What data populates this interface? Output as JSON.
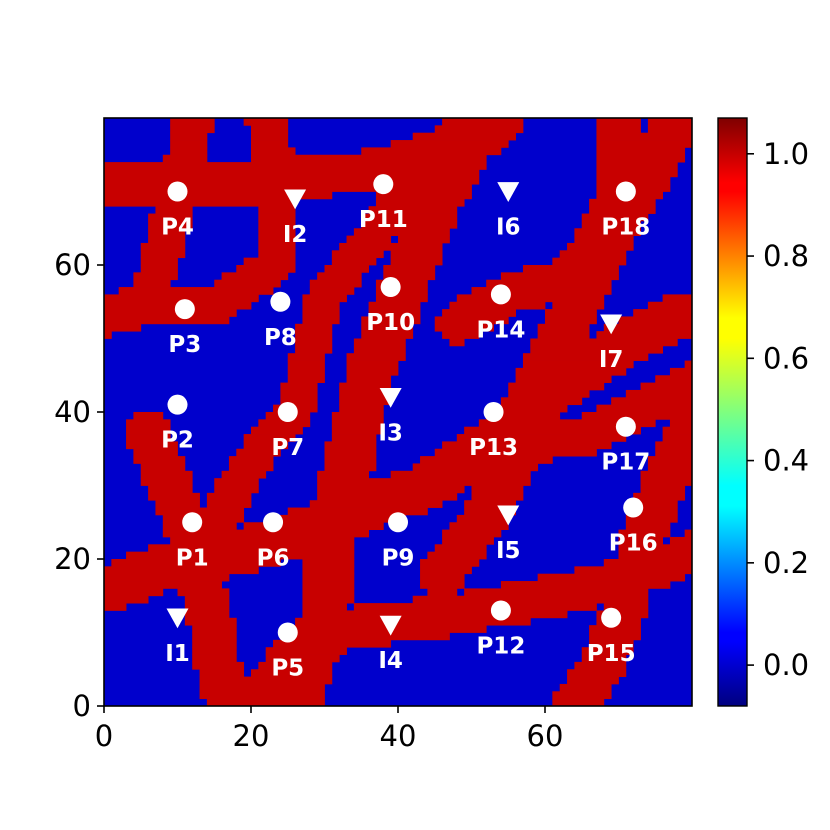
{
  "chart_data": {
    "type": "heatmap",
    "title": "",
    "xlabel": "",
    "ylabel": "",
    "xlim": [
      0,
      80
    ],
    "ylim": [
      0,
      80
    ],
    "x_ticks": [
      0,
      20,
      40,
      60
    ],
    "y_ticks": [
      0,
      20,
      40,
      60
    ],
    "grid": false,
    "field": {
      "description_values": "binary facies map: 1 = channel, 0 = background",
      "low_value": 0,
      "high_value": 1,
      "low_color": "#0000cc",
      "high_color": "#c80000",
      "channels": [
        {
          "points": [
            [
              1,
              16
            ],
            [
              8,
              19
            ],
            [
              18,
              21
            ],
            [
              28,
              24
            ],
            [
              36,
              27
            ],
            [
              44,
              30
            ],
            [
              50,
              34
            ],
            [
              60,
              42
            ],
            [
              70,
              49
            ],
            [
              78,
              53
            ]
          ],
          "halfwidth": 3.2
        },
        {
          "points": [
            [
              6,
              37
            ],
            [
              11,
              25
            ],
            [
              14,
              14
            ],
            [
              16,
              3
            ],
            [
              17,
              0
            ]
          ],
          "halfwidth": 3.0
        },
        {
          "points": [
            [
              20,
              0
            ],
            [
              27,
              9
            ],
            [
              36,
              11
            ],
            [
              45,
              12
            ],
            [
              56,
              14
            ],
            [
              66,
              16
            ],
            [
              76,
              19
            ],
            [
              80,
              21
            ]
          ],
          "halfwidth": 2.8
        },
        {
          "points": [
            [
              0,
              71
            ],
            [
              8,
              71
            ],
            [
              18,
              71
            ],
            [
              28,
              72
            ],
            [
              38,
              73
            ],
            [
              46,
              76
            ],
            [
              52,
              80
            ]
          ],
          "halfwidth": 2.8
        },
        {
          "points": [
            [
              12,
              79
            ],
            [
              10,
              70
            ],
            [
              8,
              62
            ],
            [
              6,
              55
            ],
            [
              0,
              53
            ]
          ],
          "halfwidth": 2.6
        },
        {
          "points": [
            [
              22,
              80
            ],
            [
              24,
              70
            ],
            [
              23,
              60
            ],
            [
              16,
              55
            ],
            [
              4,
              54
            ],
            [
              0,
              53
            ]
          ],
          "halfwidth": 2.6
        },
        {
          "points": [
            [
              26,
              0
            ],
            [
              30,
              12
            ],
            [
              31,
              24
            ],
            [
              34,
              36
            ],
            [
              36,
              45
            ],
            [
              40,
              55
            ],
            [
              45,
              68
            ],
            [
              50,
              77
            ],
            [
              54,
              80
            ]
          ],
          "halfwidth": 3.3
        },
        {
          "points": [
            [
              14,
              22
            ],
            [
              18,
              30
            ],
            [
              22,
              36
            ],
            [
              26,
              40
            ],
            [
              28,
              48
            ],
            [
              30,
              56
            ],
            [
              36,
              63
            ],
            [
              40,
              69
            ],
            [
              46,
              76
            ],
            [
              50,
              80
            ]
          ],
          "halfwidth": 2.5
        },
        {
          "points": [
            [
              64,
              0
            ],
            [
              68,
              6
            ],
            [
              71,
              14
            ],
            [
              73,
              22
            ],
            [
              76,
              30
            ],
            [
              80,
              38
            ]
          ],
          "halfwidth": 3.0
        },
        {
          "points": [
            [
              46,
              18
            ],
            [
              52,
              26
            ],
            [
              56,
              34
            ],
            [
              58,
              42
            ],
            [
              62,
              50
            ],
            [
              66,
              58
            ],
            [
              70,
              66
            ],
            [
              74,
              72
            ],
            [
              78,
              80
            ]
          ],
          "halfwidth": 3.0
        },
        {
          "points": [
            [
              60,
              36
            ],
            [
              66,
              37
            ],
            [
              72,
              40
            ],
            [
              80,
              44
            ]
          ],
          "halfwidth": 2.6
        },
        {
          "points": [
            [
              70,
              80
            ],
            [
              70,
              70
            ],
            [
              66,
              62
            ],
            [
              62,
              58
            ],
            [
              55,
              56
            ],
            [
              48,
              52
            ]
          ],
          "halfwidth": 2.8
        }
      ]
    },
    "colorbar": {
      "colormap": "jet",
      "min": -0.08,
      "max": 1.07,
      "tick_values": [
        0.0,
        0.2,
        0.4,
        0.6,
        0.8,
        1.0
      ],
      "tick_labels": [
        "0.0",
        "0.2",
        "0.4",
        "0.6",
        "0.8",
        "1.0"
      ]
    },
    "wells": [
      {
        "label": "P1",
        "kind": "producer",
        "x": 12,
        "y": 25
      },
      {
        "label": "P2",
        "kind": "producer",
        "x": 10,
        "y": 41
      },
      {
        "label": "P3",
        "kind": "producer",
        "x": 11,
        "y": 54
      },
      {
        "label": "P4",
        "kind": "producer",
        "x": 10,
        "y": 70
      },
      {
        "label": "P5",
        "kind": "producer",
        "x": 25,
        "y": 10
      },
      {
        "label": "P6",
        "kind": "producer",
        "x": 23,
        "y": 25
      },
      {
        "label": "P7",
        "kind": "producer",
        "x": 25,
        "y": 40
      },
      {
        "label": "P8",
        "kind": "producer",
        "x": 24,
        "y": 55
      },
      {
        "label": "P9",
        "kind": "producer",
        "x": 40,
        "y": 25
      },
      {
        "label": "P10",
        "kind": "producer",
        "x": 39,
        "y": 57
      },
      {
        "label": "P11",
        "kind": "producer",
        "x": 38,
        "y": 71
      },
      {
        "label": "P12",
        "kind": "producer",
        "x": 54,
        "y": 13
      },
      {
        "label": "P13",
        "kind": "producer",
        "x": 53,
        "y": 40
      },
      {
        "label": "P14",
        "kind": "producer",
        "x": 54,
        "y": 56
      },
      {
        "label": "P15",
        "kind": "producer",
        "x": 69,
        "y": 12
      },
      {
        "label": "P16",
        "kind": "producer",
        "x": 72,
        "y": 27
      },
      {
        "label": "P17",
        "kind": "producer",
        "x": 71,
        "y": 38
      },
      {
        "label": "P18",
        "kind": "producer",
        "x": 71,
        "y": 70
      },
      {
        "label": "I1",
        "kind": "injector",
        "x": 10,
        "y": 12
      },
      {
        "label": "I2",
        "kind": "injector",
        "x": 26,
        "y": 69
      },
      {
        "label": "I3",
        "kind": "injector",
        "x": 39,
        "y": 42
      },
      {
        "label": "I4",
        "kind": "injector",
        "x": 39,
        "y": 11
      },
      {
        "label": "I5",
        "kind": "injector",
        "x": 55,
        "y": 26
      },
      {
        "label": "I6",
        "kind": "injector",
        "x": 55,
        "y": 70
      },
      {
        "label": "I7",
        "kind": "injector",
        "x": 69,
        "y": 52
      }
    ]
  }
}
